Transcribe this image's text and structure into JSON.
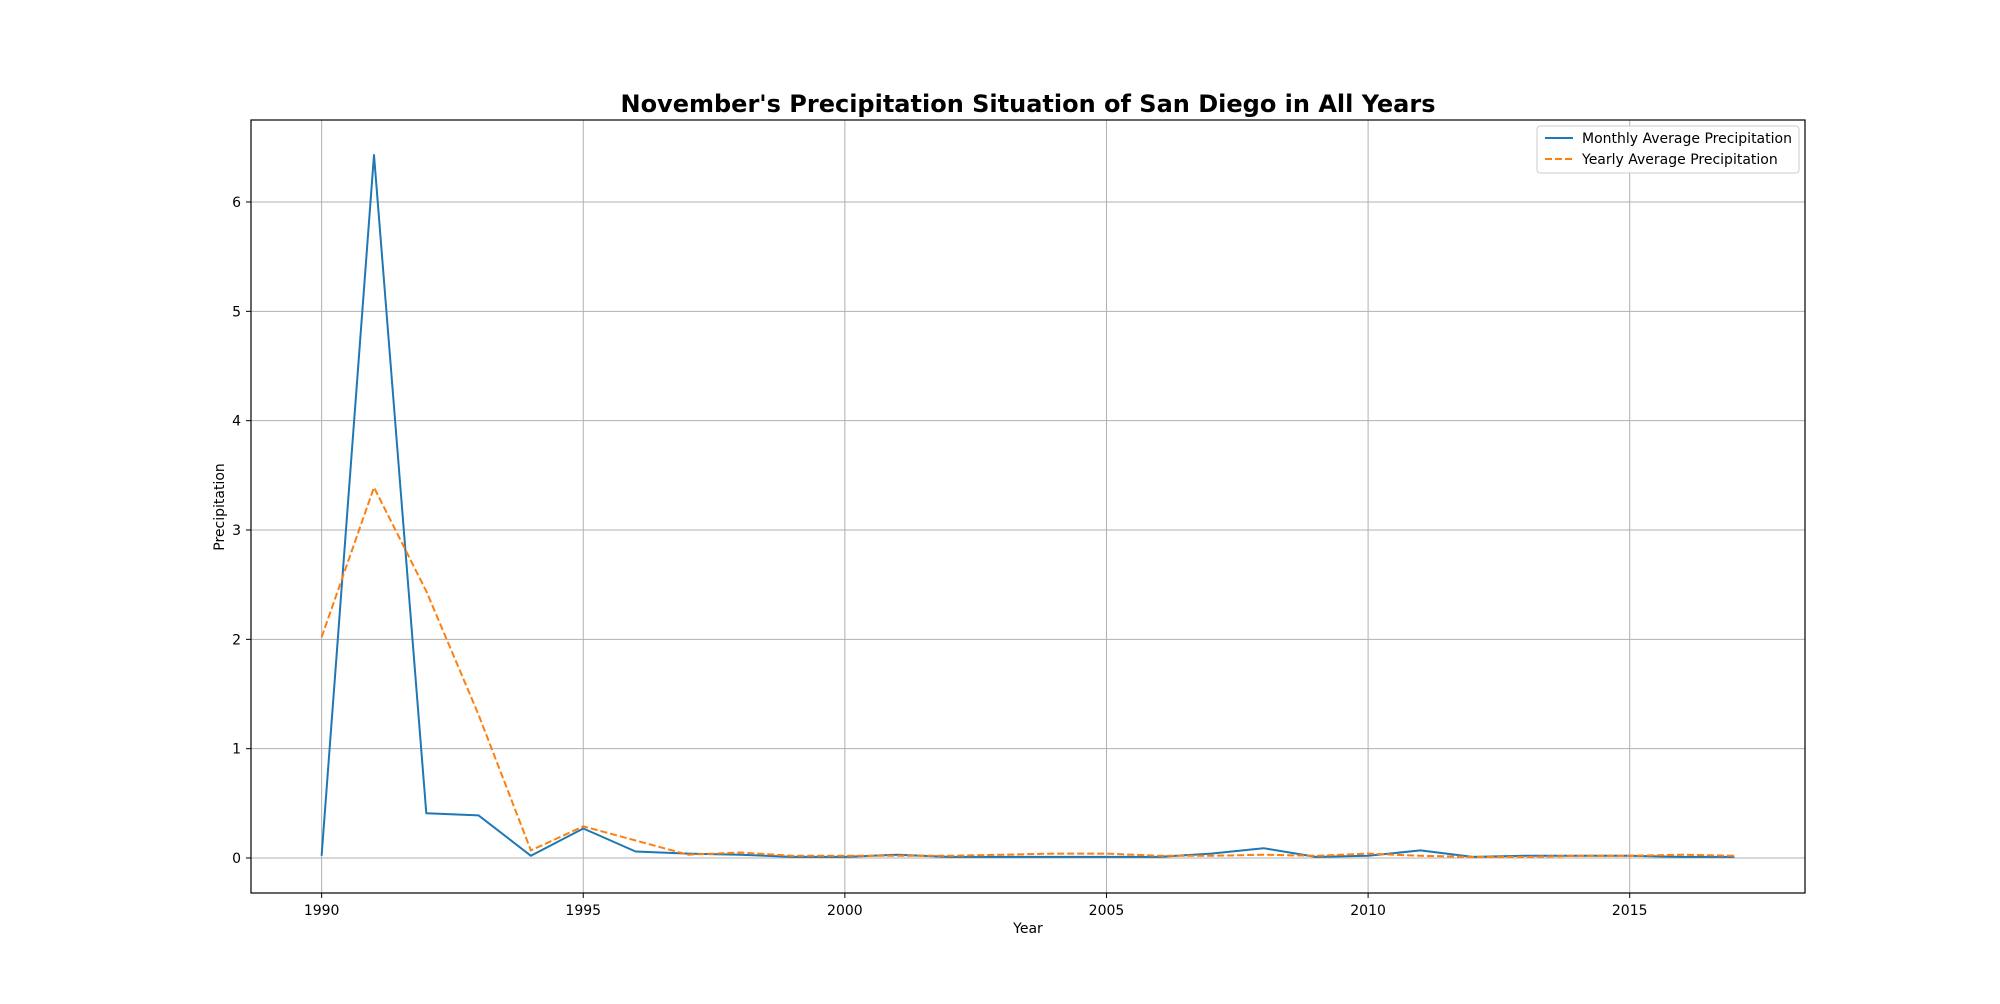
{
  "chart_data": {
    "type": "line",
    "title": "November's Precipitation Situation of San Diego in All Years",
    "xlabel": "Year",
    "ylabel": "Precipitation",
    "xlim": [
      1988.65,
      2018.35
    ],
    "ylim": [
      -0.32,
      6.75
    ],
    "xticks": [
      1990,
      1995,
      2000,
      2005,
      2010,
      2015
    ],
    "yticks": [
      0,
      1,
      2,
      3,
      4,
      5,
      6
    ],
    "grid": true,
    "legend_position": "top-right",
    "x": [
      1990,
      1991,
      1992,
      1993,
      1994,
      1995,
      1996,
      1997,
      1998,
      1999,
      2000,
      2001,
      2002,
      2003,
      2004,
      2005,
      2006,
      2007,
      2008,
      2009,
      2010,
      2011,
      2012,
      2013,
      2014,
      2015,
      2016,
      2017
    ],
    "series": [
      {
        "name": "Monthly Average Precipitation",
        "color": "#1f77b4",
        "style": "solid",
        "values": [
          0.02,
          6.43,
          0.41,
          0.39,
          0.02,
          0.27,
          0.06,
          0.04,
          0.03,
          0.01,
          0.01,
          0.03,
          0.01,
          0.01,
          0.01,
          0.01,
          0.01,
          0.04,
          0.09,
          0.01,
          0.02,
          0.07,
          0.01,
          0.02,
          0.02,
          0.02,
          0.01,
          0.01
        ]
      },
      {
        "name": "Yearly Average Precipitation",
        "color": "#ff7f0e",
        "style": "dashed",
        "values": [
          2.02,
          3.39,
          2.44,
          1.31,
          0.07,
          0.29,
          0.16,
          0.03,
          0.05,
          0.02,
          0.02,
          0.02,
          0.02,
          0.03,
          0.04,
          0.04,
          0.02,
          0.02,
          0.03,
          0.02,
          0.04,
          0.02,
          0.01,
          0.01,
          0.02,
          0.02,
          0.03,
          0.02
        ]
      }
    ]
  }
}
